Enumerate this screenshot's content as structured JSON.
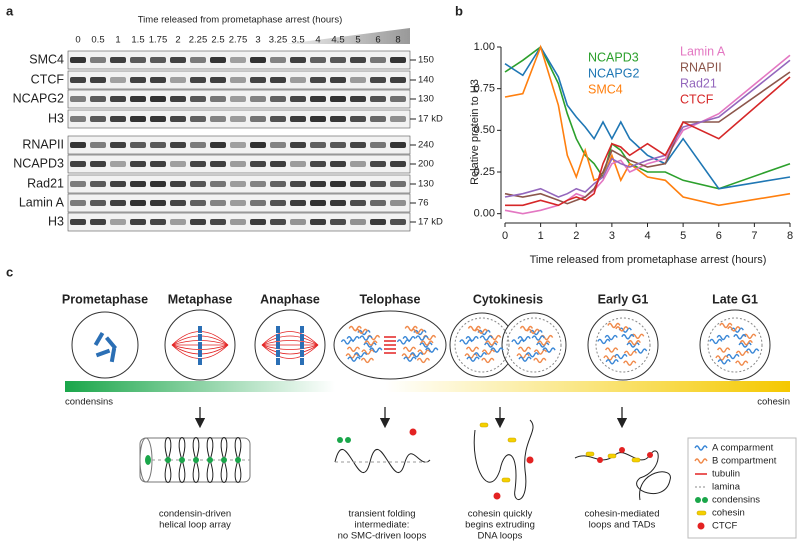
{
  "panel_labels": [
    "a",
    "b",
    "c"
  ],
  "panel_a": {
    "title": "Time released from prometaphase arrest (hours)",
    "times": [
      "0",
      "0.5",
      "1",
      "1.5",
      "1.75",
      "2",
      "2.25",
      "2.5",
      "2.75",
      "3",
      "3.25",
      "3.5",
      "4",
      "4.5",
      "5",
      "6",
      "8"
    ],
    "group1": {
      "proteins": [
        "SMC4",
        "CTCF",
        "NCAPG2",
        "H3"
      ],
      "markers": [
        "150",
        "140",
        "130",
        "17 kD"
      ]
    },
    "group2": {
      "proteins": [
        "RNAPII",
        "NCAPD3",
        "Rad21",
        "Lamin A",
        "H3"
      ],
      "markers": [
        "240",
        "200",
        "130",
        "76",
        "17 kD"
      ]
    }
  },
  "chart_data": {
    "type": "line",
    "xlabel": "Time released from prometaphase arrest (hours)",
    "ylabel": "Relative protein to H3",
    "x": [
      0,
      0.5,
      1,
      1.5,
      1.75,
      2,
      2.25,
      2.5,
      2.75,
      3,
      3.25,
      3.5,
      4,
      4.5,
      5,
      6,
      8
    ],
    "xlim": [
      0,
      8
    ],
    "xticks": [
      0,
      1,
      2,
      3,
      4,
      5,
      6,
      7,
      8
    ],
    "ylim": [
      -0.02,
      1.0
    ],
    "yticks": [
      {
        "value": 0,
        "label": "0.00"
      },
      0.25,
      {
        "value": 0.5,
        "label": "0.50"
      },
      0.75,
      {
        "value": 1,
        "label": "1.00"
      }
    ],
    "series": [
      {
        "name": "NCAPD3",
        "color": "#2ca02c",
        "values": [
          0.85,
          0.92,
          1.0,
          0.78,
          0.6,
          0.45,
          0.35,
          0.3,
          0.22,
          0.42,
          0.38,
          0.3,
          0.25,
          0.25,
          0.2,
          0.15,
          0.3
        ]
      },
      {
        "name": "NCAPG2",
        "color": "#1f77b4",
        "values": [
          0.9,
          0.83,
          1.0,
          0.82,
          0.65,
          0.58,
          0.52,
          0.45,
          0.55,
          0.45,
          0.55,
          0.45,
          0.35,
          0.3,
          0.45,
          0.15,
          0.22
        ]
      },
      {
        "name": "SMC4",
        "color": "#ff7f0e",
        "values": [
          0.7,
          0.72,
          1.0,
          0.65,
          0.35,
          0.22,
          0.38,
          0.2,
          0.22,
          0.35,
          0.2,
          0.3,
          0.22,
          0.2,
          0.1,
          0.05,
          0.12
        ]
      },
      {
        "name": "Lamin A",
        "color": "#e377c2",
        "values": [
          0.02,
          0.0,
          0.02,
          0.05,
          0.08,
          0.12,
          0.1,
          0.14,
          0.2,
          0.3,
          0.32,
          0.25,
          0.3,
          0.33,
          0.5,
          0.6,
          0.95
        ]
      },
      {
        "name": "RNAPII",
        "color": "#8c564b",
        "values": [
          0.12,
          0.1,
          0.12,
          0.08,
          0.06,
          0.08,
          0.1,
          0.15,
          0.25,
          0.38,
          0.35,
          0.32,
          0.28,
          0.3,
          0.55,
          0.55,
          0.85
        ]
      },
      {
        "name": "Rad21",
        "color": "#9467bd",
        "values": [
          0.1,
          0.12,
          0.15,
          0.1,
          0.12,
          0.15,
          0.13,
          0.18,
          0.22,
          0.33,
          0.3,
          0.28,
          0.32,
          0.35,
          0.52,
          0.58,
          0.92
        ]
      },
      {
        "name": "CTCF",
        "color": "#d62728",
        "values": [
          0.05,
          0.05,
          0.08,
          0.05,
          0.08,
          0.1,
          0.08,
          0.12,
          0.3,
          0.42,
          0.4,
          0.35,
          0.42,
          0.35,
          0.55,
          0.45,
          0.82
        ]
      }
    ]
  },
  "panel_c": {
    "stages": [
      "Prometaphase",
      "Metaphase",
      "Anaphase",
      "Telophase",
      "Cytokinesis",
      "Early G1",
      "Late G1"
    ],
    "gradient_left": "condensins",
    "gradient_right": "cohesin",
    "captions": [
      [
        "condensin-driven",
        "helical loop array"
      ],
      [
        "transient folding",
        "intermediate:",
        "no SMC-driven loops"
      ],
      [
        "cohesin quickly",
        "begins extruding",
        "DNA loops"
      ],
      [
        "cohesin-mediated",
        "loops and TADs"
      ]
    ],
    "legend": [
      "A comparment",
      "B compartment",
      "tubulin",
      "lamina",
      "condensins",
      "cohesin",
      "CTCF"
    ]
  }
}
